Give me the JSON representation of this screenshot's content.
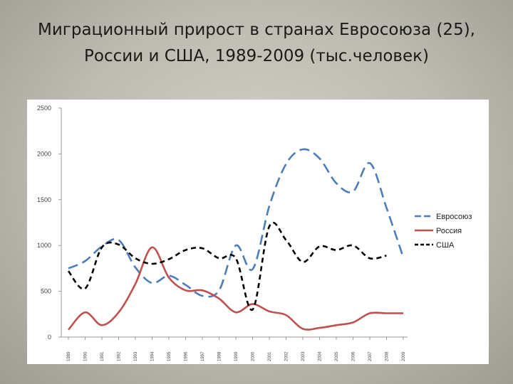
{
  "slide": {
    "title_line1": "Миграционный прирост в странах Евросоюза (25),",
    "title_line2": "России и США, 1989-2009 (тыс.человек)"
  },
  "chart_data": {
    "type": "line",
    "title": "Миграционный прирост в странах Евросоюза (25), России и США, 1989-2009 (тыс.человек)",
    "x": [
      "1989",
      "1990",
      "1991",
      "1992",
      "1993",
      "1994",
      "1995",
      "1996",
      "1997",
      "1998",
      "1999",
      "2000",
      "2001",
      "2002",
      "2003",
      "2004",
      "2005",
      "2006",
      "2007",
      "2008",
      "2009"
    ],
    "ylim": [
      0,
      2500
    ],
    "yticks": [
      "0",
      "500",
      "1000",
      "1500",
      "2000",
      "2500"
    ],
    "grid": false,
    "legend_position": "right",
    "series": [
      {
        "name": "Евросоюз",
        "color": "#4a7ebb",
        "dash": "long-dash",
        "values": [
          750,
          830,
          990,
          1060,
          760,
          590,
          670,
          570,
          450,
          510,
          1000,
          740,
          1430,
          1890,
          2050,
          1950,
          1680,
          1590,
          1900,
          1410,
          870
        ]
      },
      {
        "name": "Россия",
        "color": "#c0504d",
        "dash": "solid",
        "values": [
          80,
          270,
          130,
          270,
          580,
          980,
          650,
          510,
          510,
          420,
          270,
          360,
          280,
          240,
          90,
          100,
          130,
          160,
          260,
          260,
          260
        ]
      },
      {
        "name": "США",
        "color": "#000000",
        "dash": "short-dash",
        "values": [
          720,
          530,
          980,
          1010,
          860,
          800,
          850,
          950,
          970,
          860,
          860,
          300,
          1210,
          1060,
          820,
          990,
          950,
          1000,
          860,
          890,
          null
        ]
      }
    ]
  }
}
